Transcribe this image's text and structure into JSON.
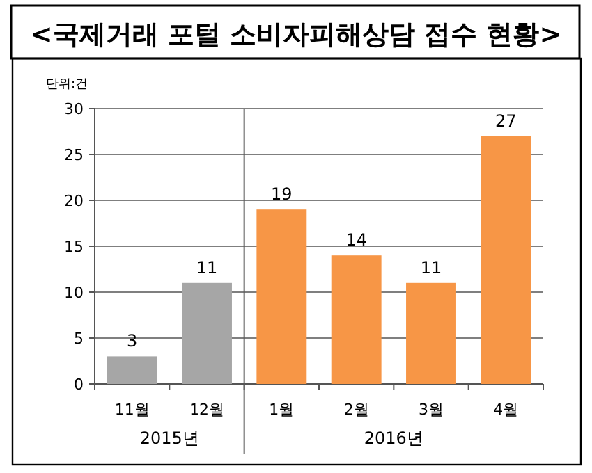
{
  "chart_data": {
    "type": "bar",
    "title": "<국제거래 포털 소비자피해상담 접수 현황>",
    "ylabel": "단위:건",
    "categories": [
      "11월",
      "12월",
      "1월",
      "2월",
      "3월",
      "4월"
    ],
    "values": [
      3,
      11,
      19,
      14,
      11,
      27
    ],
    "colors": [
      "#a6a6a6",
      "#a6a6a6",
      "#f79646",
      "#f79646",
      "#f79646",
      "#f79646"
    ],
    "ylim": [
      0,
      30
    ],
    "yticks": [
      0,
      5,
      10,
      15,
      20,
      25,
      30
    ],
    "grid": "y",
    "data_labels": true,
    "annotations": [
      "2015년",
      "2016년"
    ],
    "ref_lines": [
      {
        "axis": "x",
        "value": "1월",
        "color": "#595959"
      }
    ]
  }
}
